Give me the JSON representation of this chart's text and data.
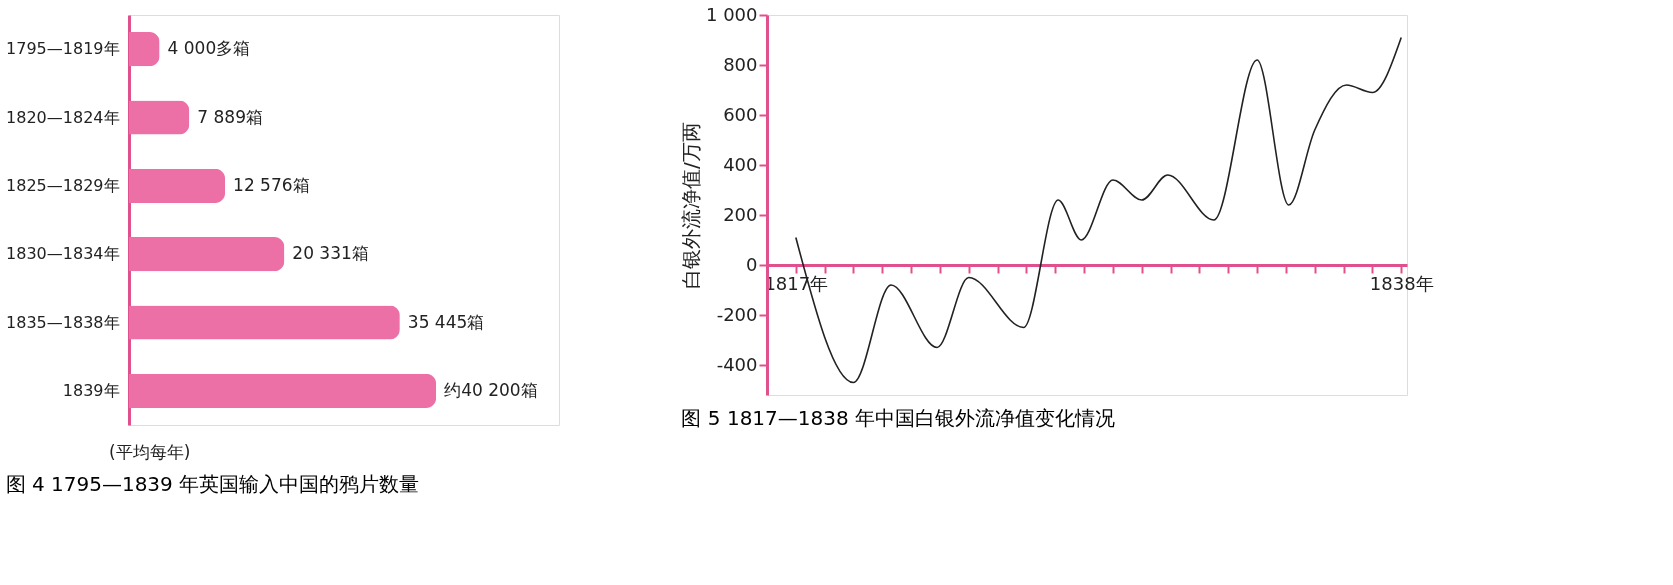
{
  "chart_data": [
    {
      "type": "bar",
      "orientation": "horizontal",
      "title": "图 4  1795—1839 年英国输入中国的鸦片数量",
      "xlabel": "(平均每年)",
      "categories": [
        "1795—1819年",
        "1820—1824年",
        "1825—1829年",
        "1830—1834年",
        "1835—1838年",
        "1839年"
      ],
      "values": [
        4000,
        7889,
        12576,
        20331,
        35445,
        40200
      ],
      "value_labels": [
        "4 000多箱",
        "7 889箱",
        "12 576箱",
        "20 331箱",
        "35 445箱",
        "约40 200箱"
      ],
      "color": "#ec6fa6",
      "grid": false
    },
    {
      "type": "line",
      "title": "图 5  1817—1838 年中国白银外流净值变化情况",
      "ylabel": "白银外流净值/万两",
      "xlim": [
        1816,
        1838.2
      ],
      "ylim": [
        -520,
        1000
      ],
      "xticks": [
        {
          "value": 1817,
          "label": "1817年"
        },
        {
          "value": 1818,
          "label": null
        },
        {
          "value": 1819,
          "label": null
        },
        {
          "value": 1820,
          "label": null
        },
        {
          "value": 1821,
          "label": null
        },
        {
          "value": 1822,
          "label": null
        },
        {
          "value": 1823,
          "label": null
        },
        {
          "value": 1824,
          "label": null
        },
        {
          "value": 1825,
          "label": null
        },
        {
          "value": 1826,
          "label": null
        },
        {
          "value": 1827,
          "label": null
        },
        {
          "value": 1828,
          "label": null
        },
        {
          "value": 1829,
          "label": null
        },
        {
          "value": 1830,
          "label": null
        },
        {
          "value": 1831,
          "label": null
        },
        {
          "value": 1832,
          "label": null
        },
        {
          "value": 1833,
          "label": null
        },
        {
          "value": 1834,
          "label": null
        },
        {
          "value": 1835,
          "label": null
        },
        {
          "value": 1836,
          "label": null
        },
        {
          "value": 1837,
          "label": null
        },
        {
          "value": 1838,
          "label": "1838年"
        }
      ],
      "yticks": [
        -400,
        -200,
        0,
        200,
        400,
        600,
        800,
        {
          "value": 1000,
          "label": "1 000"
        }
      ],
      "series": [
        {
          "color": "#222222",
          "x": [
            1817,
            1819,
            1820.3,
            1821.9,
            1823,
            1824.9,
            1826.1,
            1826.9,
            1828,
            1829,
            1829.9,
            1831.5,
            1833,
            1834.1,
            1835,
            1836.1,
            1837,
            1838
          ],
          "values": [
            110,
            -470,
            -80,
            -330,
            -50,
            -250,
            260,
            100,
            340,
            260,
            360,
            180,
            820,
            240,
            540,
            720,
            690,
            910
          ]
        }
      ],
      "grid": false,
      "marker": "none",
      "line_style": "solid"
    }
  ]
}
